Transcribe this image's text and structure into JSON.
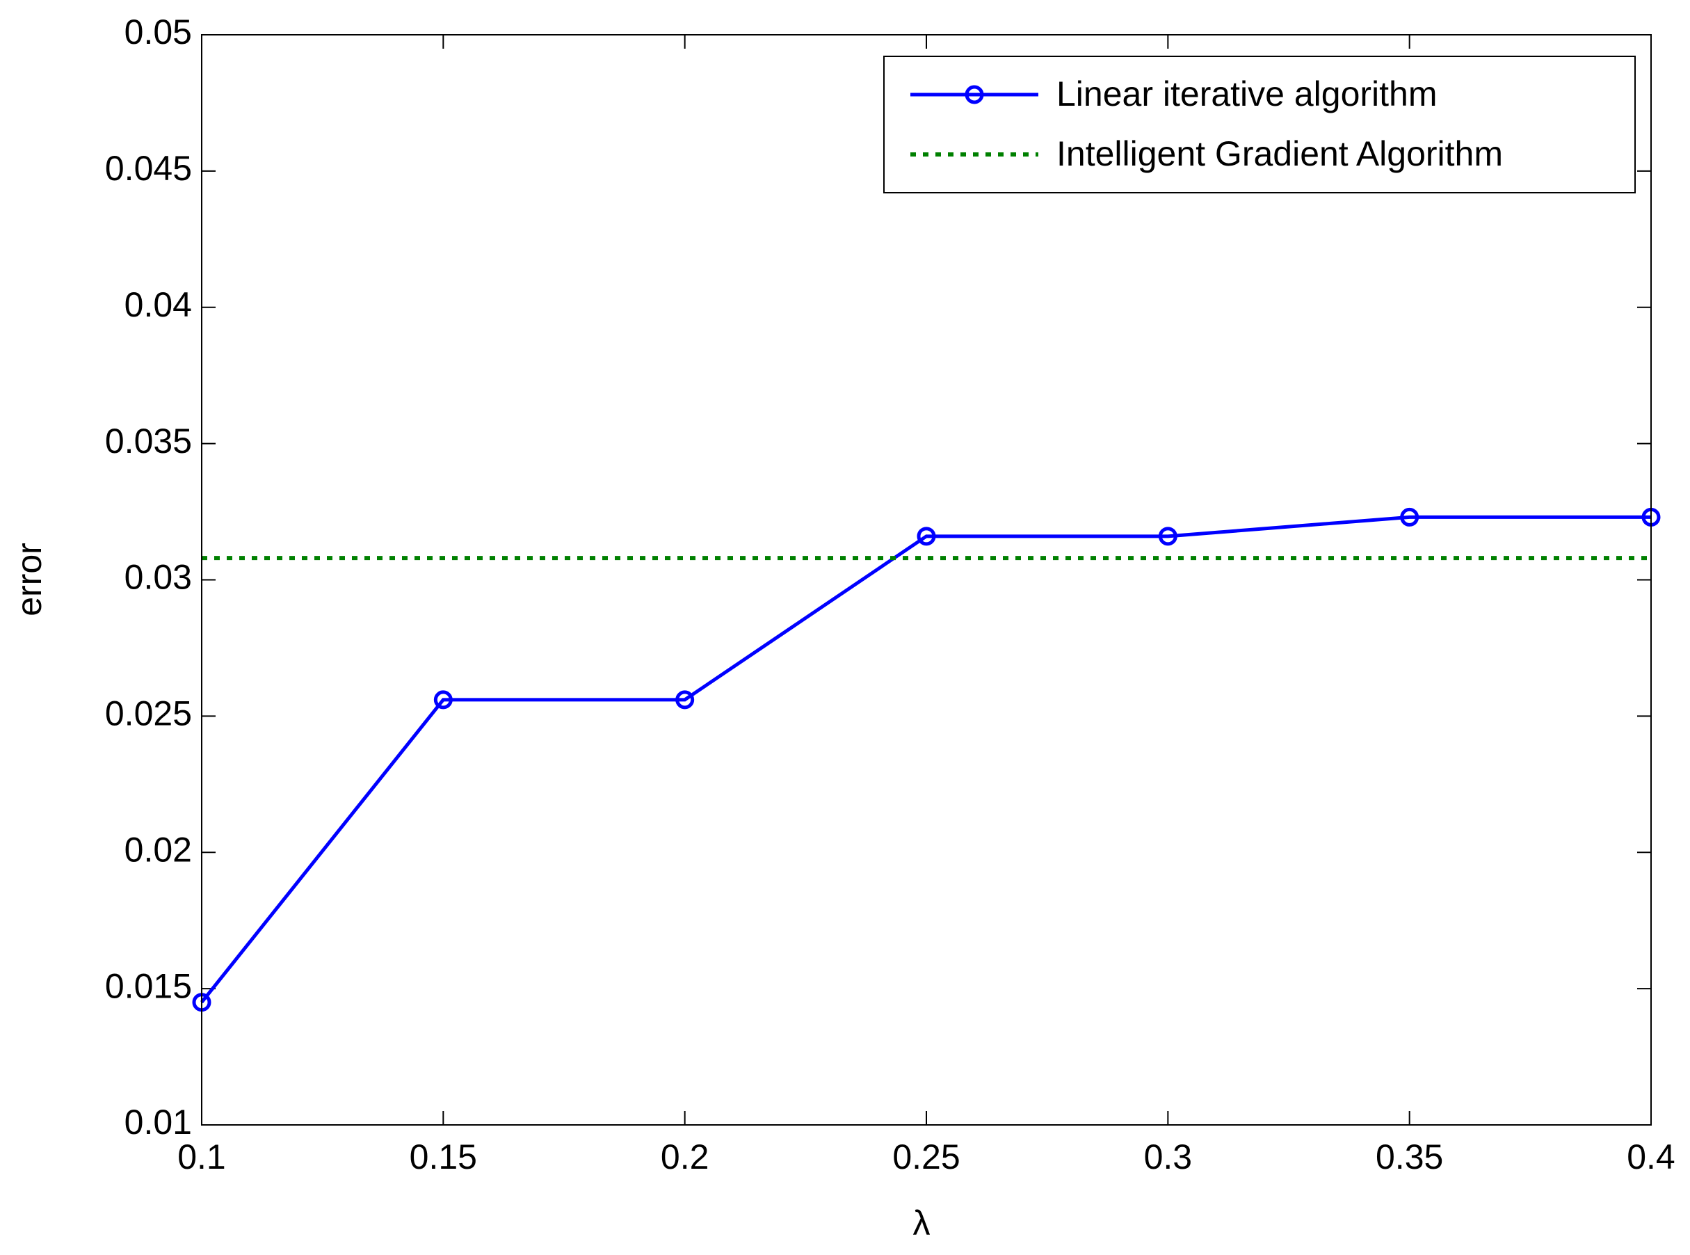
{
  "chart_data": {
    "type": "line",
    "xlabel": "λ",
    "ylabel": "error",
    "xlim": [
      0.1,
      0.4
    ],
    "xticks": [
      0.1,
      0.15,
      0.2,
      0.25,
      0.3,
      0.35,
      0.4
    ],
    "ylim": [
      0.01,
      0.05
    ],
    "yticks": [
      0.01,
      0.015,
      0.02,
      0.025,
      0.03,
      0.035,
      0.04,
      0.045,
      0.05
    ],
    "grid": false,
    "legend": "upper right",
    "series": [
      {
        "name": "Linear iterative algorithm",
        "color": "#0000ff",
        "style": "solid",
        "marker": "circle",
        "x": [
          0.1,
          0.15,
          0.2,
          0.25,
          0.3,
          0.35,
          0.4
        ],
        "values": [
          0.0145,
          0.0256,
          0.0256,
          0.0316,
          0.0316,
          0.0323,
          0.0323
        ]
      },
      {
        "name": "Intelligent Gradient Algorithm",
        "color": "#008000",
        "style": "dotted",
        "marker": "none",
        "x": [
          0.1,
          0.4
        ],
        "values": [
          0.0308,
          0.0308
        ]
      }
    ]
  }
}
